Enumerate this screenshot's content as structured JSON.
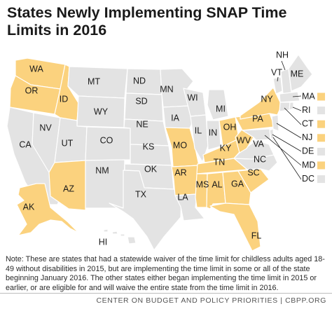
{
  "title": "States Newly Implementing SNAP Time Limits in 2016",
  "note": "Note: These are states that had a statewide waiver of the time limit for childless adults aged 18-49 without disabilities in 2015, but are implementing the time limit in some or all of the state beginning January 2016. The other states either began implementing the time limit in 2015 or earlier, or are eligible for and will waive the entire state from the time limit in 2016.",
  "footer": "CENTER ON BUDGET AND POLICY PRIORITIES | CBPP.ORG",
  "colors": {
    "implementing": "#fbd27e",
    "other": "#e3e3e3",
    "border": "#ffffff",
    "text": "#1a1a1a"
  },
  "states": {
    "WA": {
      "label": "WA",
      "implementing": true
    },
    "OR": {
      "label": "OR",
      "implementing": true
    },
    "ID": {
      "label": "ID",
      "implementing": true
    },
    "AZ": {
      "label": "AZ",
      "implementing": true
    },
    "AK": {
      "label": "AK",
      "implementing": true
    },
    "MO": {
      "label": "MO",
      "implementing": true
    },
    "AR": {
      "label": "AR",
      "implementing": true
    },
    "MS": {
      "label": "MS",
      "implementing": true
    },
    "AL": {
      "label": "AL",
      "implementing": true
    },
    "GA": {
      "label": "GA",
      "implementing": true
    },
    "SC": {
      "label": "SC",
      "implementing": true
    },
    "TN": {
      "label": "TN",
      "implementing": true
    },
    "KY": {
      "label": "KY",
      "implementing": true
    },
    "WV": {
      "label": "WV",
      "implementing": true
    },
    "FL": {
      "label": "FL",
      "implementing": true
    },
    "NY": {
      "label": "NY",
      "implementing": true
    },
    "PA": {
      "label": "PA",
      "implementing": true
    },
    "OH": {
      "label": "OH",
      "implementing": true
    },
    "CA": {
      "label": "CA",
      "implementing": false
    },
    "NV": {
      "label": "NV",
      "implementing": false
    },
    "UT": {
      "label": "UT",
      "implementing": false
    },
    "MT": {
      "label": "MT",
      "implementing": false
    },
    "WY": {
      "label": "WY",
      "implementing": false
    },
    "CO": {
      "label": "CO",
      "implementing": false
    },
    "NM": {
      "label": "NM",
      "implementing": false
    },
    "TX": {
      "label": "TX",
      "implementing": false
    },
    "OK": {
      "label": "OK",
      "implementing": false
    },
    "KS": {
      "label": "KS",
      "implementing": false
    },
    "NE": {
      "label": "NE",
      "implementing": false
    },
    "SD": {
      "label": "SD",
      "implementing": false
    },
    "ND": {
      "label": "ND",
      "implementing": false
    },
    "MN": {
      "label": "MN",
      "implementing": false
    },
    "IA": {
      "label": "IA",
      "implementing": false
    },
    "WI": {
      "label": "WI",
      "implementing": false
    },
    "IL": {
      "label": "IL",
      "implementing": false
    },
    "IN": {
      "label": "IN",
      "implementing": false
    },
    "MI": {
      "label": "MI",
      "implementing": false
    },
    "LA": {
      "label": "LA",
      "implementing": false
    },
    "NC": {
      "label": "NC",
      "implementing": false
    },
    "VA": {
      "label": "VA",
      "implementing": false
    },
    "VT": {
      "label": "VT",
      "implementing": false
    },
    "NH": {
      "label": "NH",
      "implementing": false
    },
    "ME": {
      "label": "ME",
      "implementing": false
    },
    "HI": {
      "label": "HI",
      "implementing": false
    }
  },
  "legend": [
    {
      "label": "MA",
      "implementing": true
    },
    {
      "label": "RI",
      "implementing": false
    },
    {
      "label": "CT",
      "implementing": true
    },
    {
      "label": "NJ",
      "implementing": true
    },
    {
      "label": "DE",
      "implementing": false
    },
    {
      "label": "MD",
      "implementing": true
    },
    {
      "label": "DC",
      "implementing": false
    }
  ]
}
